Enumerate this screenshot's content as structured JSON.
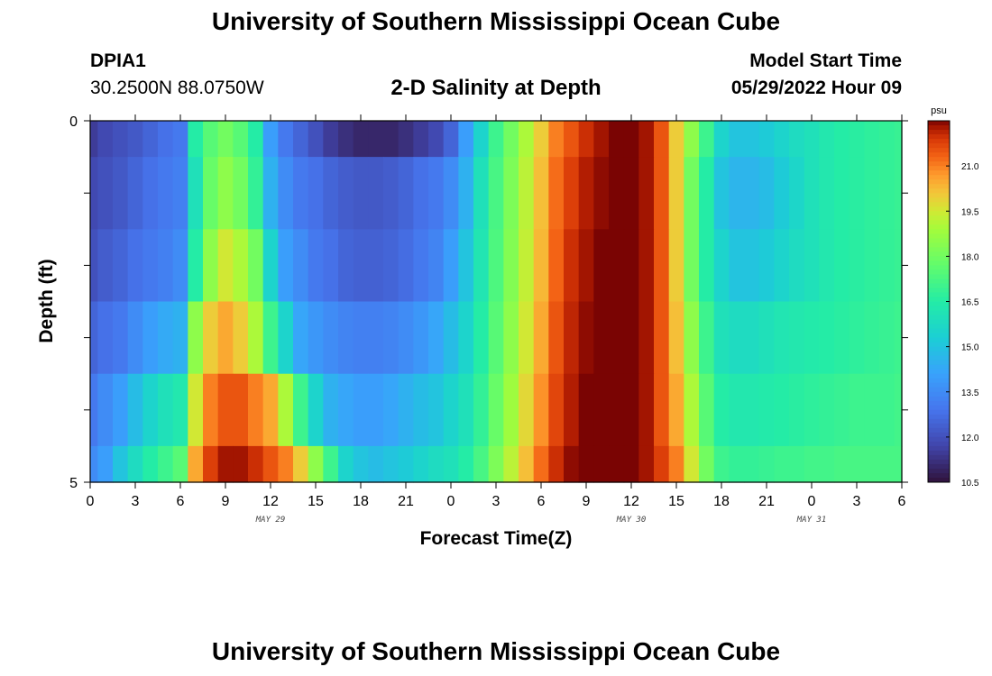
{
  "page": {
    "title": "University of Southern Mississippi Ocean Cube",
    "footer_title": "University of Southern Mississippi Ocean Cube",
    "station_name": "DPIA1",
    "station_coords": "30.2500N  88.0750W",
    "center_title": "2-D Salinity at Depth",
    "model_label": "Model Start Time",
    "model_time": "05/29/2022 Hour 09"
  },
  "chart_data": {
    "type": "heatmap",
    "title": "2-D Salinity at Depth",
    "xlabel": "Forecast Time(Z)",
    "ylabel": "Depth (ft)",
    "x_tick_labels": [
      "0",
      "3",
      "6",
      "9",
      "12",
      "15",
      "18",
      "21",
      "0",
      "3",
      "6",
      "9",
      "12",
      "15",
      "18",
      "21",
      "0",
      "3",
      "6"
    ],
    "x_range_hours": [
      0,
      54
    ],
    "date_labels": [
      {
        "label": "MAY 29",
        "hour": 12
      },
      {
        "label": "MAY 30",
        "hour": 36
      },
      {
        "label": "MAY 31",
        "hour": 48
      }
    ],
    "y_tick_labels": [
      "0",
      "5"
    ],
    "ylim": [
      0,
      5
    ],
    "y_inverted": true,
    "colorbar": {
      "unit": "psu",
      "min": 10.5,
      "max": 22.5,
      "tick_values": [
        21.0,
        19.5,
        18.0,
        16.5,
        15.0,
        13.5,
        12.0,
        10.5
      ],
      "tick_labels": [
        "21.0",
        "19.5",
        "18.0",
        "16.5",
        "15.0",
        "13.5",
        "12.0",
        "10.5"
      ]
    },
    "depth_layers_ft": [
      [
        0,
        0.5
      ],
      [
        0.5,
        1.5
      ],
      [
        1.5,
        2.5
      ],
      [
        2.5,
        3.5
      ],
      [
        3.5,
        4.5
      ],
      [
        4.5,
        5
      ]
    ],
    "hours": [
      0,
      1,
      2,
      3,
      4,
      5,
      6,
      7,
      8,
      9,
      10,
      11,
      12,
      13,
      14,
      15,
      16,
      17,
      18,
      19,
      20,
      21,
      22,
      23,
      24,
      25,
      26,
      27,
      28,
      29,
      30,
      31,
      32,
      33,
      34,
      35,
      36,
      37,
      38,
      39,
      40,
      41,
      42,
      43,
      44,
      45,
      46,
      47,
      48,
      49,
      50,
      51,
      52,
      53,
      54
    ],
    "salinity_psu": [
      [
        11.5,
        11.8,
        12.0,
        12.2,
        12.5,
        12.8,
        13.0,
        16.5,
        17.5,
        18.0,
        17.5,
        16.5,
        14.0,
        13.0,
        12.5,
        12.0,
        11.5,
        11.2,
        11.0,
        11.0,
        11.0,
        11.2,
        11.5,
        11.8,
        12.5,
        14.0,
        15.5,
        17.0,
        18.0,
        19.0,
        20.0,
        21.0,
        21.5,
        22.0,
        22.3,
        22.5,
        22.5,
        22.3,
        21.5,
        20.0,
        18.5,
        17.0,
        15.5,
        15.0,
        15.0,
        15.2,
        15.5,
        15.8,
        16.0,
        16.3,
        16.5,
        16.6,
        16.7,
        16.8,
        16.9
      ],
      [
        11.8,
        12.0,
        12.2,
        12.5,
        12.8,
        13.0,
        13.2,
        16.0,
        17.8,
        18.5,
        18.0,
        16.8,
        14.5,
        13.5,
        13.0,
        12.8,
        12.5,
        12.3,
        12.2,
        12.2,
        12.3,
        12.5,
        12.8,
        13.0,
        13.5,
        14.5,
        16.0,
        17.2,
        18.2,
        19.2,
        20.2,
        21.2,
        21.8,
        22.2,
        22.4,
        22.5,
        22.5,
        22.3,
        21.5,
        20.0,
        18.0,
        16.5,
        15.0,
        14.6,
        14.6,
        14.8,
        15.2,
        15.6,
        16.0,
        16.3,
        16.5,
        16.6,
        16.7,
        16.8,
        16.9
      ],
      [
        12.0,
        12.3,
        12.5,
        12.8,
        13.0,
        13.2,
        13.5,
        16.5,
        18.5,
        19.5,
        19.0,
        18.0,
        15.5,
        14.0,
        13.5,
        13.0,
        12.8,
        12.5,
        12.4,
        12.4,
        12.5,
        12.7,
        13.0,
        13.3,
        14.0,
        15.0,
        16.2,
        17.3,
        18.3,
        19.3,
        20.3,
        21.3,
        22.0,
        22.3,
        22.5,
        22.5,
        22.5,
        22.3,
        21.5,
        20.0,
        18.0,
        16.5,
        15.5,
        15.0,
        15.0,
        15.2,
        15.5,
        15.8,
        16.0,
        16.3,
        16.5,
        16.6,
        16.7,
        16.8,
        16.9
      ],
      [
        12.5,
        12.8,
        13.0,
        13.5,
        14.0,
        14.3,
        14.5,
        18.5,
        20.0,
        20.5,
        20.0,
        19.0,
        17.0,
        15.5,
        14.2,
        13.8,
        13.5,
        13.3,
        13.2,
        13.2,
        13.3,
        13.5,
        13.8,
        14.2,
        14.8,
        15.5,
        16.5,
        17.5,
        18.5,
        19.5,
        20.5,
        21.5,
        22.1,
        22.4,
        22.5,
        22.5,
        22.5,
        22.3,
        21.5,
        20.2,
        18.5,
        17.0,
        16.0,
        15.8,
        15.8,
        16.0,
        16.2,
        16.3,
        16.4,
        16.5,
        16.6,
        16.7,
        16.8,
        16.9,
        17.0
      ],
      [
        13.0,
        13.5,
        14.0,
        14.8,
        15.5,
        16.0,
        16.3,
        19.5,
        21.0,
        21.5,
        21.5,
        21.0,
        20.5,
        19.0,
        17.0,
        15.5,
        14.5,
        14.2,
        14.0,
        14.0,
        14.2,
        14.5,
        14.8,
        15.0,
        15.5,
        16.0,
        16.8,
        17.8,
        18.8,
        19.8,
        20.8,
        21.7,
        22.2,
        22.5,
        22.5,
        22.5,
        22.5,
        22.3,
        21.5,
        20.5,
        19.0,
        17.5,
        16.5,
        16.3,
        16.3,
        16.4,
        16.5,
        16.6,
        16.7,
        16.8,
        16.9,
        17.0,
        17.0,
        17.0,
        17.1
      ],
      [
        13.5,
        14.0,
        15.0,
        15.8,
        16.5,
        17.0,
        17.5,
        20.5,
        21.8,
        22.3,
        22.3,
        22.0,
        21.5,
        21.0,
        20.0,
        18.5,
        17.0,
        15.5,
        15.0,
        14.8,
        15.0,
        15.2,
        15.5,
        15.8,
        16.0,
        16.5,
        17.2,
        18.2,
        19.2,
        20.2,
        21.2,
        22.0,
        22.4,
        22.5,
        22.5,
        22.5,
        22.5,
        22.3,
        21.8,
        21.0,
        19.5,
        18.0,
        17.0,
        16.8,
        16.8,
        16.9,
        17.0,
        17.0,
        17.1,
        17.1,
        17.2,
        17.2,
        17.2,
        17.2,
        17.2
      ]
    ]
  }
}
